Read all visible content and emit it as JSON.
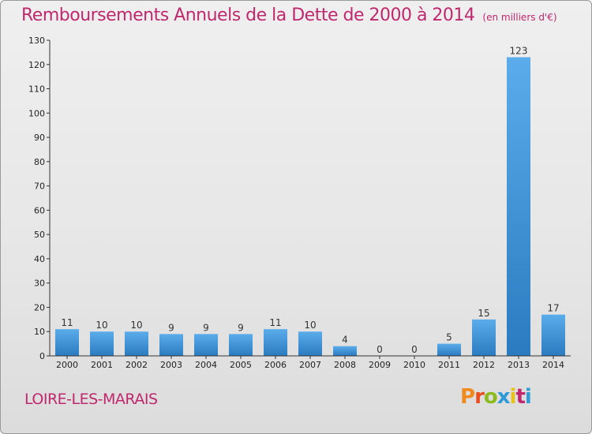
{
  "header": {
    "title": "Remboursements Annuels de la Dette de 2000 à 2014",
    "unit": "(en milliers d'€)"
  },
  "footer": {
    "commune": "LOIRE-LES-MARAIS",
    "brand": "Proxiti",
    "brand_colors": [
      "#f08a1c",
      "#e94e1b",
      "#8dbb1f",
      "#2f9ad8",
      "#e8c21a",
      "#c0286d",
      "#2f9ad8"
    ]
  },
  "colors": {
    "title": "#c0286d",
    "bar_light": "#5aacea",
    "bar_dark": "#2a7bc0",
    "axis": "#333333"
  },
  "chart_data": {
    "type": "bar",
    "title": "Remboursements Annuels de la Dette de 2000 à 2014",
    "ylabel": "",
    "xlabel": "",
    "ylim": [
      0,
      130
    ],
    "yticks": [
      0,
      10,
      20,
      30,
      40,
      50,
      60,
      70,
      80,
      90,
      100,
      110,
      120,
      130
    ],
    "grid": false,
    "categories": [
      "2000",
      "2001",
      "2002",
      "2003",
      "2004",
      "2005",
      "2006",
      "2007",
      "2008",
      "2009",
      "2010",
      "2011",
      "2012",
      "2013",
      "2014"
    ],
    "values": [
      11,
      10,
      10,
      9,
      9,
      9,
      11,
      10,
      4,
      0,
      0,
      5,
      15,
      123,
      17
    ]
  }
}
